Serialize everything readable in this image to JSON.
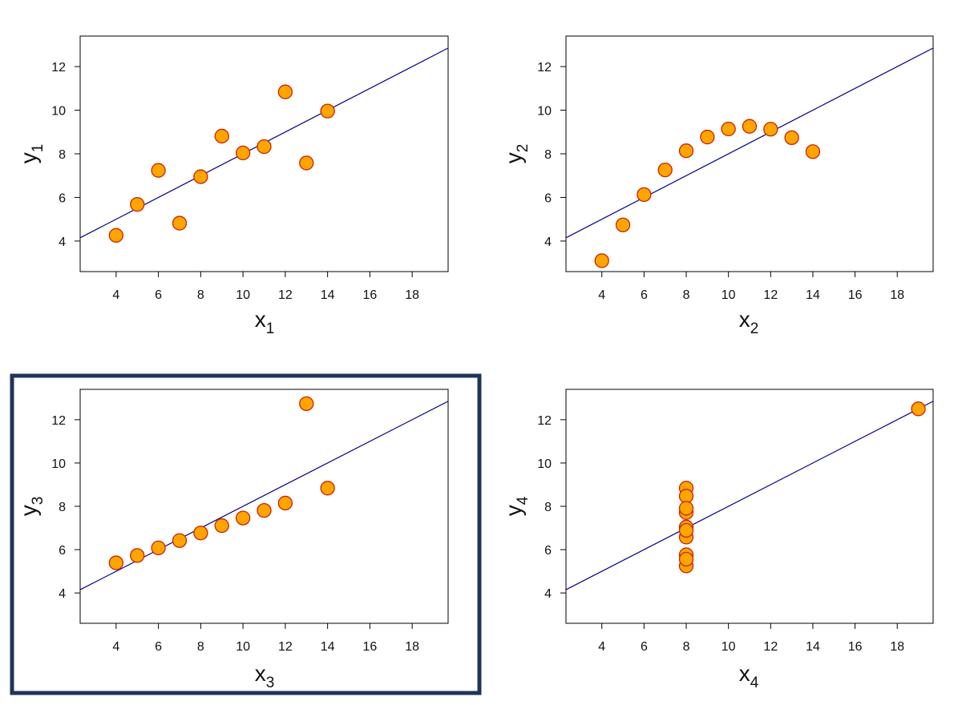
{
  "colors": {
    "point_fill": "#ffa500",
    "point_stroke": "#cc2200",
    "line": "#00008b",
    "frame": "#000000",
    "highlight_border": "#1f3557"
  },
  "chart_data": [
    {
      "type": "scatter",
      "xlabel": "x",
      "xlabel_sub": "1",
      "ylabel": "y",
      "ylabel_sub": "1",
      "xlim": [
        2.3,
        19.7
      ],
      "ylim": [
        2.6,
        13.4
      ],
      "xticks": [
        4,
        6,
        8,
        10,
        12,
        14,
        16,
        18
      ],
      "yticks": [
        4,
        6,
        8,
        10,
        12
      ],
      "points": [
        [
          10,
          8.04
        ],
        [
          8,
          6.95
        ],
        [
          13,
          7.58
        ],
        [
          9,
          8.81
        ],
        [
          11,
          8.33
        ],
        [
          14,
          9.96
        ],
        [
          6,
          7.24
        ],
        [
          4,
          4.26
        ],
        [
          12,
          10.84
        ],
        [
          7,
          4.82
        ],
        [
          5,
          5.68
        ]
      ],
      "fit_line": {
        "intercept": 3.0,
        "slope": 0.5
      },
      "highlighted": false
    },
    {
      "type": "scatter",
      "xlabel": "x",
      "xlabel_sub": "2",
      "ylabel": "y",
      "ylabel_sub": "2",
      "xlim": [
        2.3,
        19.7
      ],
      "ylim": [
        2.6,
        13.4
      ],
      "xticks": [
        4,
        6,
        8,
        10,
        12,
        14,
        16,
        18
      ],
      "yticks": [
        4,
        6,
        8,
        10,
        12
      ],
      "points": [
        [
          10,
          9.14
        ],
        [
          8,
          8.14
        ],
        [
          13,
          8.74
        ],
        [
          9,
          8.77
        ],
        [
          11,
          9.26
        ],
        [
          14,
          8.1
        ],
        [
          6,
          6.13
        ],
        [
          4,
          3.1
        ],
        [
          12,
          9.13
        ],
        [
          7,
          7.26
        ],
        [
          5,
          4.74
        ]
      ],
      "fit_line": {
        "intercept": 3.0,
        "slope": 0.5
      },
      "highlighted": false
    },
    {
      "type": "scatter",
      "xlabel": "x",
      "xlabel_sub": "3",
      "ylabel": "y",
      "ylabel_sub": "3",
      "xlim": [
        2.3,
        19.7
      ],
      "ylim": [
        2.6,
        13.4
      ],
      "xticks": [
        4,
        6,
        8,
        10,
        12,
        14,
        16,
        18
      ],
      "yticks": [
        4,
        6,
        8,
        10,
        12
      ],
      "points": [
        [
          10,
          7.46
        ],
        [
          8,
          6.77
        ],
        [
          13,
          12.74
        ],
        [
          9,
          7.11
        ],
        [
          11,
          7.81
        ],
        [
          14,
          8.84
        ],
        [
          6,
          6.08
        ],
        [
          4,
          5.39
        ],
        [
          12,
          8.15
        ],
        [
          7,
          6.42
        ],
        [
          5,
          5.73
        ]
      ],
      "fit_line": {
        "intercept": 3.0,
        "slope": 0.5
      },
      "highlighted": true
    },
    {
      "type": "scatter",
      "xlabel": "x",
      "xlabel_sub": "4",
      "ylabel": "y",
      "ylabel_sub": "4",
      "xlim": [
        2.3,
        19.7
      ],
      "ylim": [
        2.6,
        13.4
      ],
      "xticks": [
        4,
        6,
        8,
        10,
        12,
        14,
        16,
        18
      ],
      "yticks": [
        4,
        6,
        8,
        10,
        12
      ],
      "points": [
        [
          8,
          6.58
        ],
        [
          8,
          5.76
        ],
        [
          8,
          7.71
        ],
        [
          8,
          8.84
        ],
        [
          8,
          8.47
        ],
        [
          8,
          7.04
        ],
        [
          8,
          5.25
        ],
        [
          19,
          12.5
        ],
        [
          8,
          5.56
        ],
        [
          8,
          7.91
        ],
        [
          8,
          6.89
        ]
      ],
      "fit_line": {
        "intercept": 3.0,
        "slope": 0.5
      },
      "highlighted": false
    }
  ]
}
